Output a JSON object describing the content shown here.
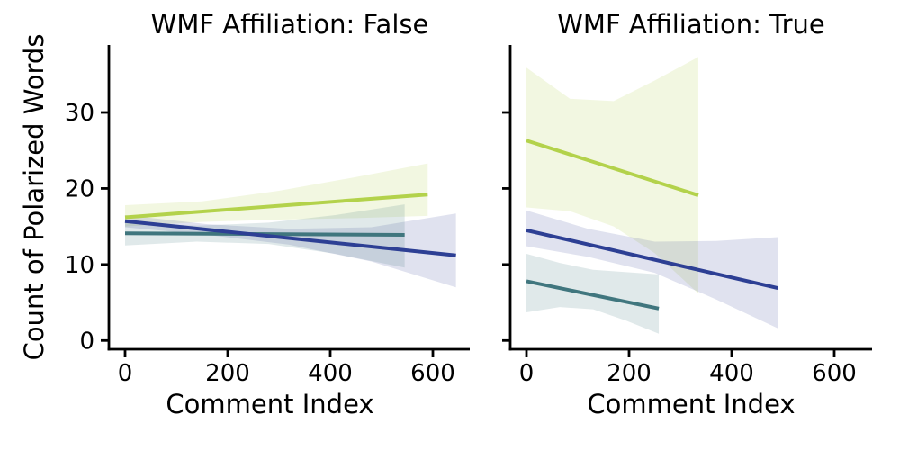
{
  "chart_data": {
    "type": "line",
    "ylabel": "Count of Polarized Words",
    "xlabel": "Comment Index",
    "x_ticks": [
      0,
      200,
      400,
      600
    ],
    "y_ticks": [
      0,
      10,
      20,
      30
    ],
    "xlim": [
      -32,
      674
    ],
    "ylim": [
      -1.1,
      38.9
    ],
    "grid": false,
    "legend": "none",
    "facets": [
      {
        "title": "WMF Affiliation: False",
        "series": [
          {
            "name": "green",
            "color": "#b3d24b",
            "band_alpha": 0.17,
            "line": {
              "x": [
                0,
                590
              ],
              "y": [
                16.2,
                19.2
              ]
            },
            "band": {
              "x": [
                0,
                150,
                300,
                450,
                590
              ],
              "lo": [
                15.0,
                15.6,
                15.9,
                16.1,
                16.4
              ],
              "hi": [
                17.8,
                18.3,
                19.7,
                21.5,
                23.3
              ]
            }
          },
          {
            "name": "blue",
            "color": "#2d3f94",
            "band_alpha": 0.15,
            "line": {
              "x": [
                0,
                645
              ],
              "y": [
                15.7,
                11.2
              ]
            },
            "band": {
              "x": [
                0,
                160,
                320,
                480,
                645
              ],
              "lo": [
                14.9,
                13.9,
                12.6,
                10.4,
                7.0
              ],
              "hi": [
                16.5,
                15.3,
                14.7,
                14.9,
                16.7
              ]
            }
          },
          {
            "name": "teal",
            "color": "#40767e",
            "band_alpha": 0.16,
            "line": {
              "x": [
                0,
                545
              ],
              "y": [
                14.1,
                13.9
              ]
            },
            "band": {
              "x": [
                0,
                140,
                280,
                410,
                545
              ],
              "lo": [
                12.5,
                13.0,
                12.7,
                11.4,
                9.6
              ],
              "hi": [
                15.5,
                15.1,
                15.5,
                16.5,
                17.9
              ]
            }
          }
        ]
      },
      {
        "title": "WMF Affiliation: True",
        "series": [
          {
            "name": "green",
            "color": "#b3d24b",
            "band_alpha": 0.17,
            "line": {
              "x": [
                0,
                335
              ],
              "y": [
                26.3,
                19.1
              ]
            },
            "band": {
              "x": [
                0,
                85,
                170,
                250,
                335
              ],
              "lo": [
                17.5,
                17.0,
                15.0,
                11.5,
                6.2
              ],
              "hi": [
                35.9,
                31.8,
                31.5,
                34.2,
                37.3
              ]
            }
          },
          {
            "name": "blue",
            "color": "#2d3f94",
            "band_alpha": 0.15,
            "line": {
              "x": [
                0,
                490
              ],
              "y": [
                14.5,
                6.9
              ]
            },
            "band": {
              "x": [
                0,
                120,
                250,
                370,
                490
              ],
              "lo": [
                12.4,
                11.0,
                8.9,
                5.4,
                1.6
              ],
              "hi": [
                17.1,
                14.7,
                13.0,
                13.1,
                13.6
              ]
            }
          },
          {
            "name": "teal",
            "color": "#40767e",
            "band_alpha": 0.16,
            "line": {
              "x": [
                0,
                258
              ],
              "y": [
                7.8,
                4.2
              ]
            },
            "band": {
              "x": [
                0,
                65,
                130,
                195,
                258
              ],
              "lo": [
                3.7,
                4.4,
                4.1,
                2.6,
                0.9
              ],
              "hi": [
                11.4,
                10.2,
                9.3,
                9.0,
                8.7
              ]
            }
          }
        ]
      }
    ]
  }
}
